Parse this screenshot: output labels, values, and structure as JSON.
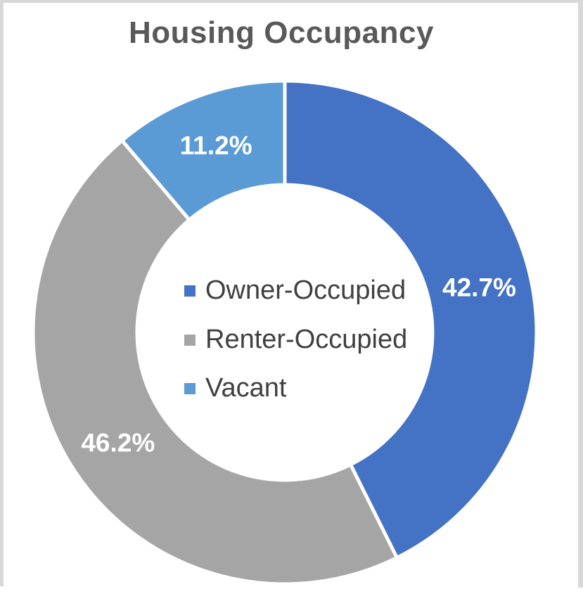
{
  "chart_data": {
    "type": "pie",
    "subtype": "donut",
    "title": "Housing Occupancy",
    "categories": [
      "Owner-Occupied",
      "Renter-Occupied",
      "Vacant"
    ],
    "values": [
      42.7,
      46.2,
      11.2
    ],
    "percent_labels": [
      "42.7%",
      "46.2%",
      "11.2%"
    ],
    "colors": [
      "#4472C4",
      "#A5A5A5",
      "#5B9BD5"
    ],
    "label_color": "#FFFFFF",
    "title_color": "#595959",
    "legend_text_color": "#404040",
    "legend_position": "center",
    "start_angle_deg": 0,
    "direction": "clockwise",
    "hole_ratio": 0.59,
    "separator_color": "#FFFFFF"
  }
}
